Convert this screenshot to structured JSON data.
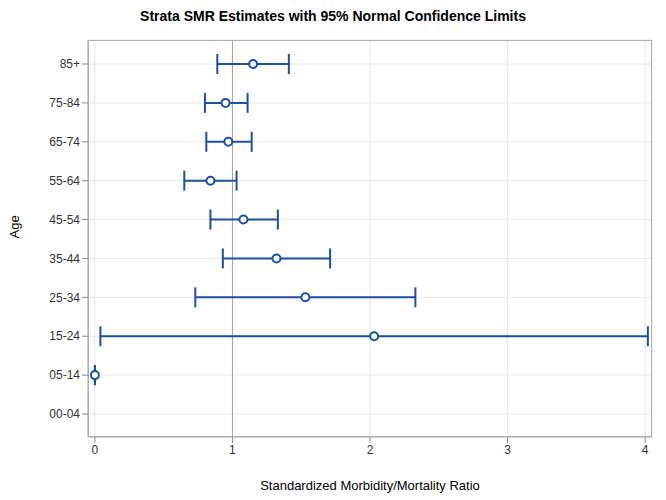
{
  "chart_data": {
    "type": "errorbar",
    "title": "Strata SMR Estimates with 95% Normal Confidence Limits",
    "x_label": "Standardized Morbidity/Mortality Ratio",
    "y_label": "Age",
    "orientation": "horizontal",
    "categories": [
      "00-04",
      "05-14",
      "15-24",
      "25-34",
      "35-44",
      "45-54",
      "55-64",
      "65-74",
      "75-84",
      "85+"
    ],
    "values": [
      null,
      0,
      2.03,
      1.53,
      1.32,
      1.08,
      0.84,
      0.97,
      0.95,
      1.15
    ],
    "lower": [
      null,
      0,
      0.04,
      0.73,
      0.93,
      0.84,
      0.65,
      0.81,
      0.8,
      0.89
    ],
    "upper": [
      null,
      0,
      4.02,
      2.33,
      1.71,
      1.33,
      1.03,
      1.14,
      1.11,
      1.41
    ],
    "xlim": [
      -0.05,
      4.05
    ],
    "xticks": [
      0,
      1,
      2,
      3,
      4
    ],
    "reference_line": 1,
    "color": "#1f4fa0",
    "marker": "circle",
    "grid": true
  }
}
